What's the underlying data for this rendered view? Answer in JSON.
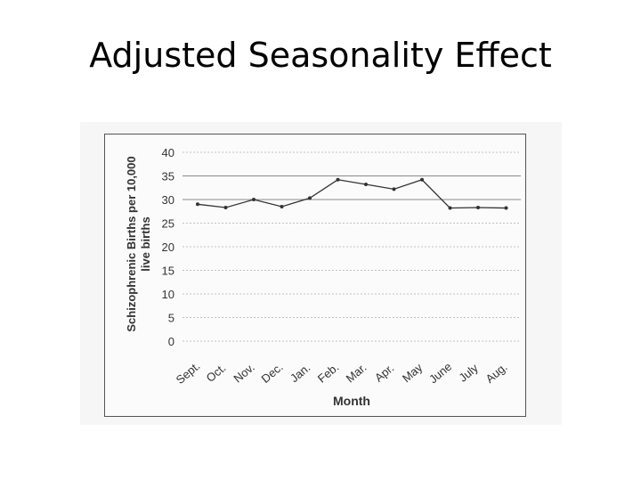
{
  "slide": {
    "title": "Adjusted Seasonality Effect"
  },
  "colors": {
    "line": "#333333",
    "grid": "#888888",
    "text": "#333333"
  },
  "chart_data": {
    "type": "line",
    "title": "",
    "xlabel": "Month",
    "ylabel_line1": "Schizophrenic Births per 10,000",
    "ylabel_line2": "live births",
    "categories": [
      "Sept.",
      "Oct.",
      "Nov.",
      "Dec.",
      "Jan.",
      "Feb.",
      "Mar.",
      "Apr.",
      "May",
      "June",
      "July",
      "Aug."
    ],
    "series": [
      {
        "values": [
          29,
          28.3,
          30,
          28.5,
          30.3,
          34.2,
          33.2,
          32.2,
          34.2,
          28.2,
          28.3,
          28.2
        ]
      }
    ],
    "yticks": [
      "0",
      "5",
      "10",
      "15",
      "20",
      "25",
      "30",
      "35",
      "40"
    ],
    "ylim": [
      0,
      40
    ],
    "grid": true
  }
}
